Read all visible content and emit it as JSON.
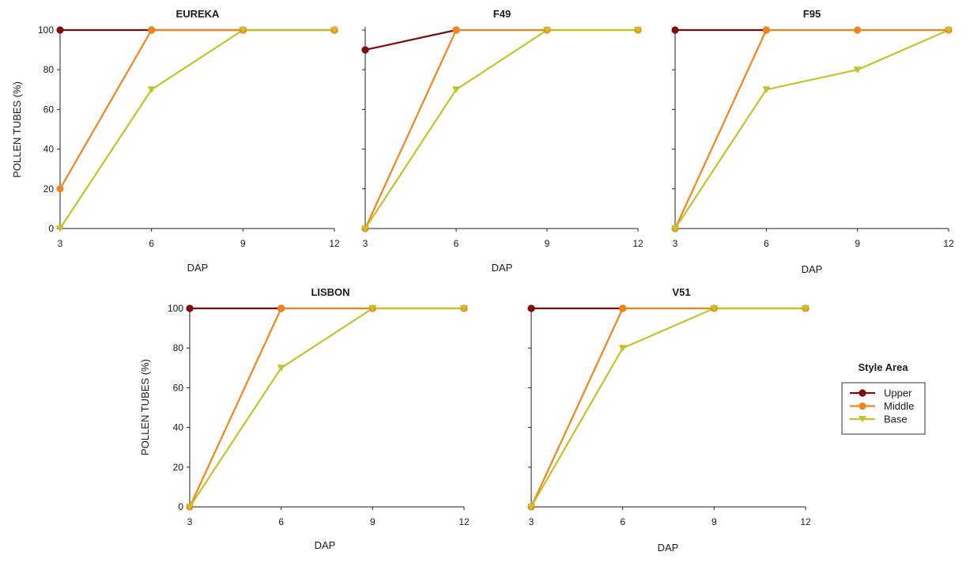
{
  "chart_data": [
    {
      "type": "line",
      "title": "EUREKA",
      "xlabel": "DAP",
      "ylabel": "POLLEN TUBES (%)",
      "xlim": [
        3,
        12
      ],
      "ylim": [
        0,
        100
      ],
      "xticks": [
        "3",
        "6",
        "9",
        "12"
      ],
      "yticks": [
        "0",
        "20",
        "40",
        "60",
        "80",
        "100"
      ],
      "series": [
        {
          "name": "Upper",
          "points": [
            [
              3,
              100
            ],
            [
              6,
              100
            ],
            [
              9,
              100
            ],
            [
              12,
              100
            ]
          ]
        },
        {
          "name": "Middle",
          "points": [
            [
              3,
              20
            ],
            [
              6,
              100
            ],
            [
              9,
              100
            ],
            [
              12,
              100
            ]
          ]
        },
        {
          "name": "Base",
          "points": [
            [
              3,
              0
            ],
            [
              6,
              70
            ],
            [
              9,
              100
            ],
            [
              12,
              100
            ]
          ]
        }
      ]
    },
    {
      "type": "line",
      "title": "F49",
      "xlabel": "DAP",
      "ylabel": "",
      "xlim": [
        3,
        12
      ],
      "ylim": [
        0,
        100
      ],
      "xticks": [
        "3",
        "6",
        "9",
        "12"
      ],
      "yticks": [],
      "series": [
        {
          "name": "Upper",
          "points": [
            [
              3,
              90
            ],
            [
              6,
              100
            ]
          ]
        },
        {
          "name": "Middle",
          "points": [
            [
              3,
              0
            ],
            [
              6,
              100
            ],
            [
              9,
              100
            ],
            [
              12,
              100
            ]
          ]
        },
        {
          "name": "Base",
          "points": [
            [
              3,
              0
            ],
            [
              6,
              70
            ],
            [
              9,
              100
            ],
            [
              12,
              100
            ]
          ]
        }
      ]
    },
    {
      "type": "line",
      "title": "F95",
      "xlabel": "DAP",
      "ylabel": "",
      "xlim": [
        3,
        12
      ],
      "ylim": [
        0,
        100
      ],
      "xticks": [
        "3",
        "6",
        "9",
        "12"
      ],
      "yticks": [],
      "series": [
        {
          "name": "Upper",
          "points": [
            [
              3,
              100
            ],
            [
              6,
              100
            ]
          ]
        },
        {
          "name": "Middle",
          "points": [
            [
              3,
              0
            ],
            [
              6,
              100
            ],
            [
              9,
              100
            ],
            [
              12,
              100
            ]
          ]
        },
        {
          "name": "Base",
          "points": [
            [
              3,
              0
            ],
            [
              6,
              70
            ],
            [
              9,
              80
            ],
            [
              12,
              100
            ]
          ]
        }
      ]
    },
    {
      "type": "line",
      "title": "LISBON",
      "xlabel": "DAP",
      "ylabel": "POLLEN TUBES (%)",
      "xlim": [
        3,
        12
      ],
      "ylim": [
        0,
        100
      ],
      "xticks": [
        "3",
        "6",
        "9",
        "12"
      ],
      "yticks": [
        "0",
        "20",
        "40",
        "60",
        "80",
        "100"
      ],
      "series": [
        {
          "name": "Upper",
          "points": [
            [
              3,
              100
            ],
            [
              6,
              100
            ]
          ]
        },
        {
          "name": "Middle",
          "points": [
            [
              3,
              0
            ],
            [
              6,
              100
            ],
            [
              9,
              100
            ],
            [
              12,
              100
            ]
          ]
        },
        {
          "name": "Base",
          "points": [
            [
              3,
              0
            ],
            [
              6,
              70
            ],
            [
              9,
              100
            ],
            [
              12,
              100
            ]
          ]
        }
      ]
    },
    {
      "type": "line",
      "title": "V51",
      "xlabel": "DAP",
      "ylabel": "",
      "xlim": [
        3,
        12
      ],
      "ylim": [
        0,
        100
      ],
      "xticks": [
        "3",
        "6",
        "9",
        "12"
      ],
      "yticks": [],
      "series": [
        {
          "name": "Upper",
          "points": [
            [
              3,
              100
            ],
            [
              6,
              100
            ]
          ]
        },
        {
          "name": "Middle",
          "points": [
            [
              3,
              0
            ],
            [
              6,
              100
            ],
            [
              9,
              100
            ],
            [
              12,
              100
            ]
          ]
        },
        {
          "name": "Base",
          "points": [
            [
              3,
              0
            ],
            [
              6,
              80
            ],
            [
              9,
              100
            ],
            [
              12,
              100
            ]
          ]
        }
      ]
    }
  ],
  "legend": {
    "title": "Style Area",
    "placement": "right",
    "entries": [
      {
        "name": "Upper",
        "marker": "circle",
        "color": "#7a0d0d"
      },
      {
        "name": "Middle",
        "marker": "circle",
        "color": "#f0851e"
      },
      {
        "name": "Base",
        "marker": "triangle-down",
        "color": "#c4c22a"
      }
    ]
  }
}
